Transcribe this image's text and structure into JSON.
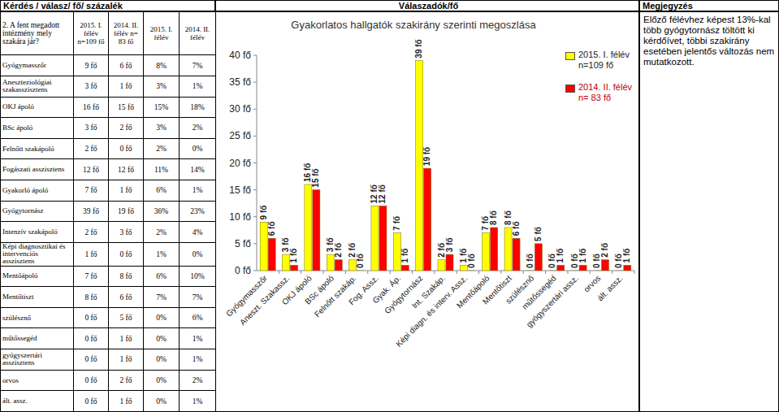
{
  "header": {
    "question_col": "Kérdés / válasz/ fő/ százalék",
    "answers_col": "Válaszadók/fő",
    "note_col": "Megjegyzés"
  },
  "table": {
    "question": "2. A fent megadott intézmény mely szakára jár?",
    "columns": [
      "2015. I. félév n=109 fő",
      "2014. II. félév n= 83 fő",
      "2015. I. félév",
      "2014. II. félév"
    ],
    "rows": [
      {
        "label": "Gyógymasszőr",
        "cells": [
          "9 fő",
          "6 fő",
          "8%",
          "7%"
        ]
      },
      {
        "label": "Aneszteziológiai szakasszisztens",
        "cells": [
          "3 fő",
          "1 fő",
          "3%",
          "1%"
        ]
      },
      {
        "label": "OKJ ápoló",
        "cells": [
          "16 fő",
          "15 fő",
          "15%",
          "18%"
        ]
      },
      {
        "label": "BSc ápoló",
        "cells": [
          "3 fő",
          "2 fő",
          "3%",
          "2%"
        ]
      },
      {
        "label": "Felnőtt szakápoló",
        "cells": [
          "2 fő",
          "0 fő",
          "2%",
          "0%"
        ]
      },
      {
        "label": "Fogászati asszisztens",
        "cells": [
          "12 fő",
          "12 fő",
          "11%",
          "14%"
        ]
      },
      {
        "label": "Gyakorló ápoló",
        "cells": [
          "7 fő",
          "1 fő",
          "6%",
          "1%"
        ]
      },
      {
        "label": "Gyógytornász",
        "cells": [
          "39 fő",
          "19 fő",
          "36%",
          "23%"
        ]
      },
      {
        "label": "Intenzív szakápoló",
        "cells": [
          "2 fő",
          "3 fő",
          "2%",
          "4%"
        ]
      },
      {
        "label": "Képi diagnosztikai és intervenciós asszisztens",
        "cells": [
          "1 fő",
          "0 fő",
          "1%",
          "0%"
        ]
      },
      {
        "label": "Mentőápoló",
        "cells": [
          "7 fő",
          "8 fő",
          "6%",
          "10%"
        ]
      },
      {
        "label": "Mentőtiszt",
        "cells": [
          "8 fő",
          "6 fő",
          "7%",
          "7%"
        ]
      },
      {
        "label": "szülésznő",
        "cells": [
          "0 fő",
          "5 fő",
          "0%",
          "6%"
        ]
      },
      {
        "label": "műtőssegéd",
        "cells": [
          "0 fő",
          "1 fő",
          "0%",
          "1%"
        ]
      },
      {
        "label": "gyógyszertári asszisztens",
        "cells": [
          "0 fő",
          "1 fő",
          "0%",
          "1%"
        ]
      },
      {
        "label": "orvos",
        "cells": [
          "0 fő",
          "2 fő",
          "0%",
          "2%"
        ]
      },
      {
        "label": "ált. assz.",
        "cells": [
          "0 fő",
          "1 fő",
          "0%",
          "1%"
        ]
      }
    ]
  },
  "note": "Előző félévhez képest 13%-kal több gyógytornász töltött ki kérdőívet, többi szakirány esetében jelentős változás nem mutatkozott.",
  "chart_data": {
    "type": "bar",
    "title": "Gyakorlatos hallgatók szakirány szerinti megoszlása",
    "categories": [
      "Gyógymasszőr",
      "Aneszt. Szakassz.",
      "OKJ ápoló",
      "BSc ápoló",
      "Felnőtt szakáp.",
      "Fog. Assz.",
      "Gyak. Áp.",
      "Gyógytornász",
      "Int. Szakáp.",
      "Képi diagn. és interv. Assz.",
      "Mentőápoló",
      "Mentőtiszt",
      "szülésznő",
      "műtőssegéd",
      "gyógyszertári assz.",
      "orvos",
      "ált. assz."
    ],
    "series": [
      {
        "name": "2015. I. félév n=109 fő",
        "color": "#ffff00",
        "values": [
          9,
          3,
          16,
          3,
          2,
          12,
          7,
          39,
          2,
          1,
          7,
          8,
          0,
          0,
          0,
          0,
          0
        ],
        "value_labels": [
          "9 fő",
          "3 fő",
          "16 fő",
          "3 fő",
          "2 fő",
          "12 fő",
          "7 fő",
          "39 fő",
          "2 fő",
          "1 fő",
          "7 fő",
          "8 fő",
          "0 fő",
          "0 fő",
          "0 fő",
          "0 fő",
          "0 fő"
        ]
      },
      {
        "name": "2014. II. félév n= 83 fő",
        "color": "#ff0000",
        "values": [
          6,
          1,
          15,
          2,
          0,
          12,
          1,
          19,
          3,
          0,
          8,
          6,
          5,
          1,
          1,
          2,
          1
        ],
        "value_labels": [
          "6 fő",
          "1 fő",
          "15 fő",
          "2 fő",
          "0 fő",
          "12 fő",
          "1 fő",
          "19 fő",
          "3 fő",
          "0 fő",
          "8 fő",
          "6 fő",
          "5 fő",
          "1 fő",
          "1 fő",
          "2 fő",
          "1 fő"
        ]
      }
    ],
    "ylim": [
      0,
      40
    ],
    "yticks": [
      {
        "value": 0,
        "label": "0 fő"
      },
      {
        "value": 5,
        "label": "5 fő"
      },
      {
        "value": 10,
        "label": "10 fő"
      },
      {
        "value": 15,
        "label": "15 fő"
      },
      {
        "value": 20,
        "label": "20 fő"
      },
      {
        "value": 25,
        "label": "25 fő"
      },
      {
        "value": 30,
        "label": "30 fő"
      },
      {
        "value": 35,
        "label": "35 fő"
      },
      {
        "value": 40,
        "label": "40 fő"
      }
    ],
    "grid": false,
    "data_labels": true,
    "legend": "upper right"
  }
}
